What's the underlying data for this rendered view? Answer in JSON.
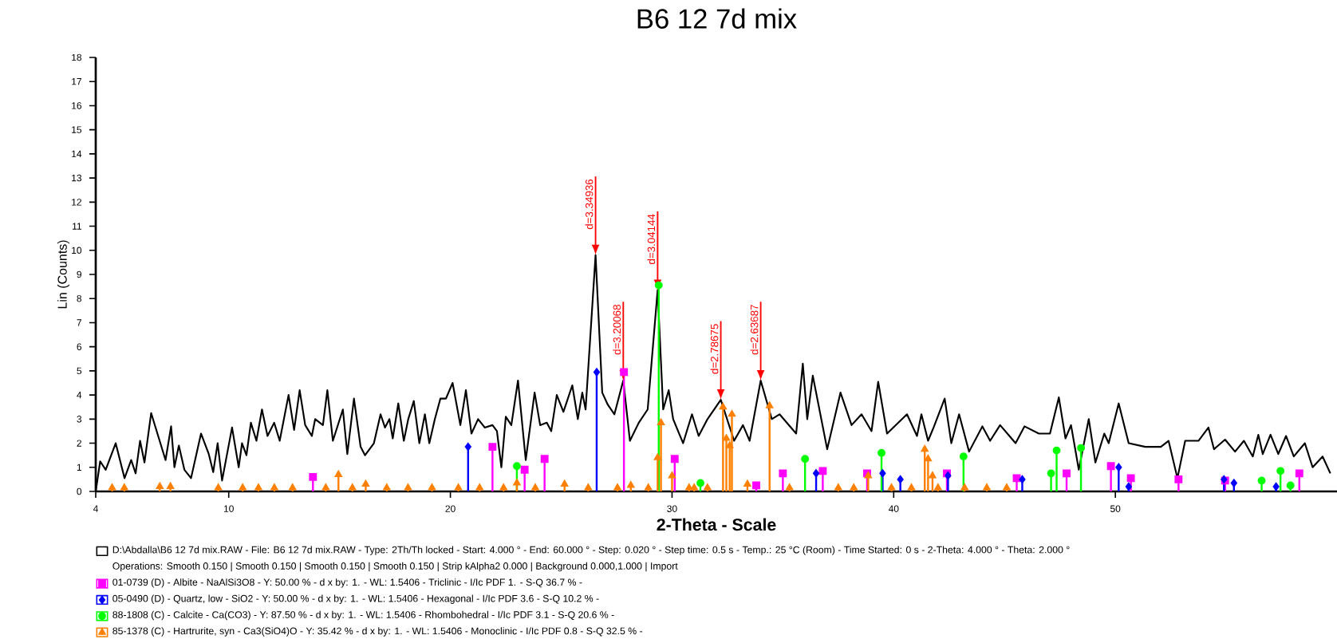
{
  "chart_data": {
    "type": "line",
    "title": "B6 12 7d mix",
    "xlabel": "2-Theta - Scale",
    "ylabel": "Lin (Counts)",
    "xlim": [
      4,
      60
    ],
    "ylim": [
      0,
      18
    ],
    "xticks": [
      4,
      10,
      20,
      30,
      40,
      50
    ],
    "yticks": [
      0,
      1,
      2,
      3,
      4,
      5,
      6,
      7,
      8,
      9,
      10,
      11,
      12,
      13,
      14,
      15,
      16,
      17,
      18
    ],
    "legend": "bottom",
    "series": [
      {
        "name": "D:\\Abdalla\\B6 12 7d mix.RAW - File: B6 12 7d mix.RAW - Type: 2Th/Th locked - Start: 4.000 ° - End: 60.000 ° - Step: 0.020 ° - Step time: 0.5 s - Temp.: 25 °C (Room) - Time Started: 0 s - 2-Theta: 4.000 ° - Theta: 2.000 °",
        "color": "#000000",
        "marker": "none",
        "x": [
          4.0,
          4.2,
          4.45,
          4.9,
          5.3,
          5.6,
          5.8,
          6.0,
          6.2,
          6.5,
          6.85,
          7.15,
          7.4,
          7.55,
          7.75,
          8.0,
          8.3,
          8.75,
          9.1,
          9.3,
          9.5,
          9.7,
          10.15,
          10.45,
          10.6,
          10.8,
          11.0,
          11.25,
          11.5,
          11.75,
          12.05,
          12.3,
          12.7,
          12.95,
          13.2,
          13.45,
          13.75,
          13.9,
          14.25,
          14.45,
          14.7,
          15.15,
          15.35,
          15.65,
          15.95,
          16.15,
          16.55,
          16.85,
          17.05,
          17.25,
          17.4,
          17.65,
          17.9,
          18.1,
          18.35,
          18.6,
          18.85,
          19.05,
          19.3,
          19.55,
          19.8,
          20.1,
          20.45,
          20.7,
          20.95,
          21.25,
          21.55,
          21.9,
          22.1,
          22.3,
          22.5,
          22.75,
          23.05,
          23.4,
          23.8,
          24.05,
          24.35,
          24.55,
          24.8,
          25.1,
          25.5,
          25.75,
          25.95,
          26.1,
          26.55,
          26.85,
          27.1,
          27.4,
          27.8,
          28.1,
          28.5,
          28.9,
          29.35,
          29.6,
          29.85,
          30.05,
          30.5,
          30.9,
          31.2,
          31.6,
          32.2,
          32.8,
          33.2,
          33.5,
          34.0,
          34.5,
          34.85,
          35.6,
          35.9,
          36.1,
          36.35,
          37.0,
          37.6,
          38.1,
          38.55,
          39.0,
          39.3,
          39.7,
          40.6,
          41.05,
          41.25,
          41.55,
          41.8,
          42.3,
          42.6,
          42.95,
          43.4,
          44.0,
          44.35,
          44.8,
          45.5,
          45.9,
          46.55,
          47.05,
          47.45,
          47.75,
          48.0,
          48.35,
          48.8,
          49.1,
          49.5,
          49.7,
          50.15,
          50.6,
          51.35,
          52.05,
          52.4,
          52.8,
          53.15,
          53.75,
          54.2,
          54.45,
          54.95,
          55.4,
          55.8,
          56.2,
          56.45,
          56.65,
          57.0,
          57.35,
          57.7,
          58.05,
          58.55,
          58.9,
          59.35,
          59.7
        ],
        "values": [
          0,
          1.25,
          0.9,
          2.0,
          0.55,
          1.3,
          0.75,
          2.1,
          1.2,
          3.25,
          2.2,
          1.3,
          2.7,
          1.0,
          1.9,
          0.9,
          0.55,
          2.4,
          1.55,
          0.8,
          2.0,
          0.45,
          2.65,
          1.0,
          2.0,
          1.5,
          2.85,
          2.1,
          3.4,
          2.3,
          2.85,
          2.1,
          4.0,
          2.55,
          4.2,
          2.75,
          2.3,
          3.0,
          2.75,
          4.2,
          2.1,
          3.4,
          1.55,
          3.85,
          1.85,
          1.5,
          2.0,
          3.2,
          2.65,
          3.0,
          2.2,
          3.65,
          2.1,
          3.0,
          3.75,
          2.0,
          3.2,
          2.0,
          3.0,
          3.85,
          3.85,
          4.5,
          2.75,
          4.2,
          2.4,
          3.0,
          2.65,
          2.75,
          2.5,
          1.0,
          3.1,
          2.75,
          4.6,
          1.3,
          4.1,
          2.75,
          2.85,
          2.5,
          4.0,
          3.3,
          4.4,
          3.0,
          4.1,
          3.4,
          9.8,
          4.1,
          3.6,
          3.2,
          4.6,
          2.1,
          2.85,
          3.4,
          8.35,
          3.4,
          4.2,
          3.0,
          2.0,
          3.2,
          2.3,
          3.0,
          3.8,
          2.1,
          2.75,
          2.1,
          4.6,
          3.0,
          3.2,
          2.4,
          5.3,
          3.0,
          4.8,
          1.75,
          4.1,
          2.75,
          3.2,
          2.5,
          4.55,
          2.4,
          3.2,
          2.3,
          3.2,
          2.1,
          2.65,
          3.85,
          2.0,
          3.2,
          1.65,
          2.7,
          2.1,
          2.75,
          2.0,
          2.7,
          2.4,
          2.4,
          3.9,
          2.2,
          2.75,
          0.9,
          3.0,
          1.2,
          2.4,
          2.0,
          3.65,
          2.0,
          1.85,
          1.85,
          2.1,
          0.55,
          2.1,
          2.1,
          2.65,
          1.75,
          2.15,
          1.65,
          2.1,
          1.45,
          2.35,
          1.55,
          2.35,
          1.55,
          2.3,
          1.45,
          2.0,
          1.0,
          1.45,
          0.75
        ]
      },
      {
        "type": "lollipop",
        "name": "01-0739 (D) - Albite - NaAlSi3O8 - Y: 50.00 % - d x by: 1. - WL: 1.5406 - Triclinic - I/Ic PDF 1. - S-Q 36.7 % -",
        "color": "#ff00ff",
        "marker": "square",
        "x": [
          13.8,
          21.9,
          23.35,
          24.25,
          27.83,
          30.12,
          33.8,
          35.0,
          36.8,
          38.8,
          42.4,
          45.55,
          47.8,
          49.8,
          50.7,
          52.85,
          54.95,
          58.3
        ],
        "values": [
          0.6,
          1.85,
          0.9,
          1.35,
          4.95,
          1.35,
          0.25,
          0.75,
          0.85,
          0.75,
          0.75,
          0.55,
          0.75,
          1.05,
          0.55,
          0.5,
          0.45,
          0.75
        ]
      },
      {
        "type": "lollipop",
        "name": "05-0490 (D) - Quartz, low - SiO2 - Y: 50.00 % - d x by: 1. - WL: 1.5406 - Hexagonal - I/Ic PDF 3.6 - S-Q 10.2 % -",
        "color": "#0000ff",
        "marker": "diamond",
        "x": [
          20.8,
          26.6,
          36.5,
          39.5,
          40.3,
          42.45,
          45.8,
          50.15,
          50.6,
          54.9,
          55.35,
          57.25
        ],
        "values": [
          1.85,
          4.95,
          0.75,
          0.75,
          0.5,
          0.65,
          0.5,
          1.0,
          0.2,
          0.5,
          0.35,
          0.2
        ]
      },
      {
        "type": "lollipop",
        "name": "88-1808 (C) - Calcite - Ca(CO3) - Y: 87.50 % - d x by: 1. - WL: 1.5406 - Rhombohedral - I/Ic PDF 3.1 - S-Q 20.6 % -",
        "color": "#00ff00",
        "marker": "circle",
        "x": [
          23.0,
          29.4,
          31.28,
          36.0,
          39.45,
          43.15,
          47.1,
          47.35,
          48.45,
          56.6,
          57.45,
          57.9
        ],
        "values": [
          1.05,
          8.55,
          0.35,
          1.35,
          1.6,
          1.45,
          0.75,
          1.7,
          1.8,
          0.45,
          0.85,
          0.25
        ]
      },
      {
        "type": "lollipop",
        "name": "85-1378 (C) - Hartrurite, syn - Ca3(SiO4)O - Y: 35.42 % - d x by: 1. - WL: 1.5406 - Monoclinic - I/Ic PDF 0.8 - S-Q 32.5 % -",
        "color": "#ff8000",
        "marker": "triangle",
        "x": [
          4.74,
          5.29,
          6.89,
          7.37,
          9.53,
          10.63,
          11.34,
          12.06,
          12.88,
          14.38,
          14.95,
          15.58,
          16.18,
          17.13,
          18.09,
          19.17,
          20.36,
          21.32,
          22.4,
          23.0,
          23.83,
          25.15,
          26.22,
          27.54,
          28.14,
          28.93,
          29.35,
          29.5,
          30.0,
          30.77,
          31.0,
          31.6,
          32.3,
          32.45,
          32.6,
          32.7,
          33.4,
          34.4,
          35.3,
          37.5,
          38.2,
          38.85,
          39.9,
          40.8,
          41.4,
          41.55,
          41.75,
          42.0,
          43.2,
          44.2,
          45.1
        ],
        "values": [
          0.15,
          0.15,
          0.2,
          0.2,
          0.15,
          0.15,
          0.15,
          0.15,
          0.15,
          0.15,
          0.7,
          0.15,
          0.3,
          0.15,
          0.15,
          0.15,
          0.15,
          0.15,
          0.15,
          0.35,
          0.15,
          0.3,
          0.15,
          0.15,
          0.25,
          0.15,
          1.4,
          2.85,
          0.65,
          0.15,
          0.15,
          0.15,
          3.5,
          2.2,
          1.9,
          3.2,
          0.3,
          3.55,
          0.15,
          0.15,
          0.15,
          0.65,
          0.15,
          0.15,
          1.75,
          1.35,
          0.65,
          0.15,
          0.15,
          0.15,
          0.15
        ]
      }
    ],
    "annotations": [
      "Operations: Smooth 0.150 | Smooth 0.150 | Smooth 0.150 | Smooth 0.150 | Strip kAlpha2 0.000 | Background 0.000,1.000 | Import",
      {
        "text": "d=3.34936",
        "x": 26.55,
        "y": 9.8
      },
      {
        "text": "d=3.20068",
        "x": 27.8,
        "y": 4.6
      },
      {
        "text": "d=3.04144",
        "x": 29.35,
        "y": 8.35
      },
      {
        "text": "d=2.78675",
        "x": 32.2,
        "y": 3.8
      },
      {
        "text": "d=2.63687",
        "x": 34.0,
        "y": 4.6
      }
    ]
  }
}
